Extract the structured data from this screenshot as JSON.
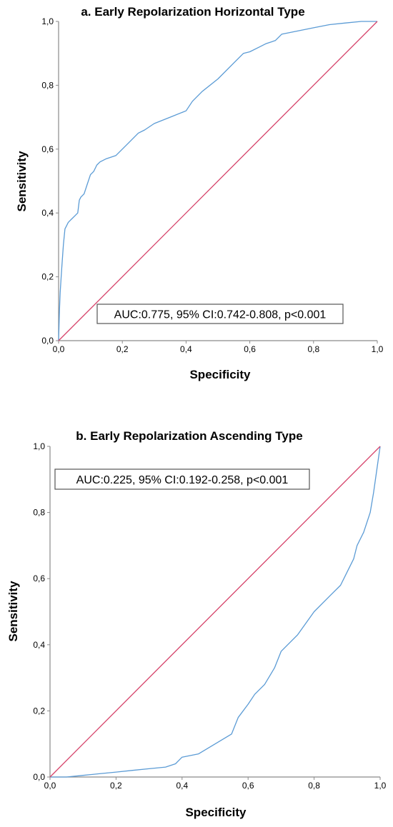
{
  "chart_data": [
    {
      "type": "line",
      "title": "a. Early Repolarization Horizontal Type",
      "xlabel": "Specificity",
      "ylabel": "Sensitivity",
      "xlim": [
        0,
        1
      ],
      "ylim": [
        0,
        1
      ],
      "xticks": [
        "0,0",
        "0,2",
        "0,4",
        "0,6",
        "0,8",
        "1,0"
      ],
      "yticks": [
        "0,0",
        "0,2",
        "0,4",
        "0,6",
        "0,8",
        "1,0"
      ],
      "annotation": "AUC:0.775, 95% CI:0.742-0.808, p<0.001",
      "annotation_position": "bottom-center",
      "grid": false,
      "series": [
        {
          "color": "#5b9bd5",
          "x": [
            0,
            0.003,
            0.005,
            0.008,
            0.01,
            0.015,
            0.02,
            0.025,
            0.03,
            0.04,
            0.05,
            0.06,
            0.065,
            0.07,
            0.08,
            0.09,
            0.1,
            0.11,
            0.12,
            0.13,
            0.15,
            0.18,
            0.22,
            0.25,
            0.27,
            0.3,
            0.35,
            0.4,
            0.42,
            0.45,
            0.5,
            0.55,
            0.58,
            0.6,
            0.63,
            0.65,
            0.68,
            0.7,
            0.75,
            0.8,
            0.85,
            0.9,
            0.95,
            1.0
          ],
          "y": [
            0,
            0.1,
            0.15,
            0.2,
            0.23,
            0.3,
            0.35,
            0.36,
            0.37,
            0.38,
            0.39,
            0.4,
            0.44,
            0.45,
            0.46,
            0.49,
            0.52,
            0.53,
            0.55,
            0.56,
            0.57,
            0.58,
            0.62,
            0.65,
            0.66,
            0.68,
            0.7,
            0.72,
            0.75,
            0.78,
            0.82,
            0.87,
            0.9,
            0.905,
            0.92,
            0.93,
            0.94,
            0.96,
            0.97,
            0.98,
            0.99,
            0.995,
            1.0,
            1.0
          ]
        },
        {
          "color": "#d6436a",
          "x": [
            0,
            1
          ],
          "y": [
            0,
            1
          ]
        }
      ]
    },
    {
      "type": "line",
      "title": "b. Early Repolarization Ascending Type",
      "xlabel": "Specificity",
      "ylabel": "Sensitivity",
      "xlim": [
        0,
        1
      ],
      "ylim": [
        0,
        1
      ],
      "xticks": [
        "0,0",
        "0,2",
        "0,4",
        "0,6",
        "0,8",
        "1,0"
      ],
      "yticks": [
        "0,0",
        "0,2",
        "0,4",
        "0,6",
        "0,8",
        "1,0"
      ],
      "annotation": "AUC:0.225, 95% CI:0.192-0.258, p<0.001",
      "annotation_position": "top-left",
      "grid": false,
      "series": [
        {
          "color": "#5b9bd5",
          "x": [
            0,
            0.05,
            0.1,
            0.15,
            0.2,
            0.25,
            0.3,
            0.35,
            0.38,
            0.4,
            0.45,
            0.5,
            0.55,
            0.57,
            0.6,
            0.62,
            0.65,
            0.68,
            0.7,
            0.72,
            0.75,
            0.8,
            0.85,
            0.88,
            0.9,
            0.92,
            0.93,
            0.95,
            0.97,
            0.98,
            0.99,
            1.0
          ],
          "y": [
            0,
            0,
            0.005,
            0.01,
            0.015,
            0.02,
            0.025,
            0.03,
            0.04,
            0.06,
            0.07,
            0.1,
            0.13,
            0.18,
            0.22,
            0.25,
            0.28,
            0.33,
            0.38,
            0.4,
            0.43,
            0.5,
            0.55,
            0.58,
            0.62,
            0.66,
            0.7,
            0.74,
            0.8,
            0.86,
            0.93,
            1.0
          ]
        },
        {
          "color": "#d6436a",
          "x": [
            0,
            1
          ],
          "y": [
            0,
            1
          ]
        }
      ]
    }
  ]
}
